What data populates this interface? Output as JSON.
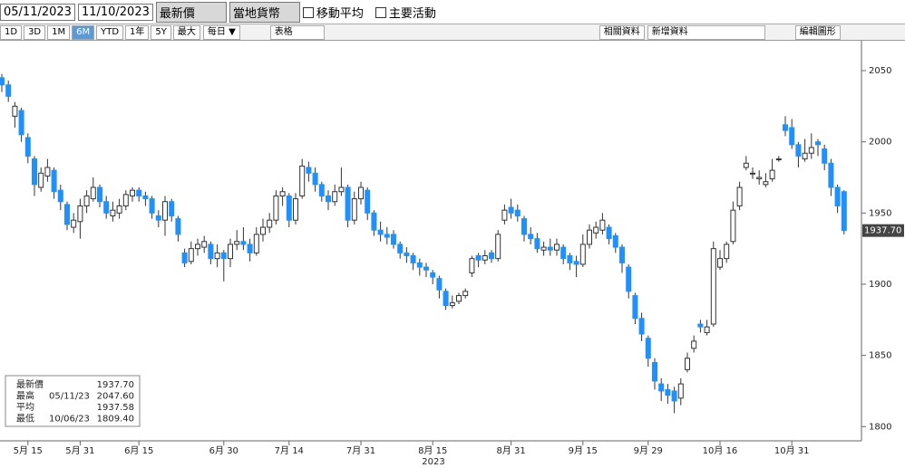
{
  "toolbar": {
    "start_date": "05/11/2023",
    "end_date": "11/10/2023",
    "price_field": "最新價",
    "currency": "當地貨幣",
    "moving_average": "移動平均",
    "key_events": "主要活動",
    "ranges": [
      "1D",
      "3D",
      "1M",
      "6M",
      "YTD",
      "1年",
      "5Y",
      "最大"
    ],
    "frequency": "每日 ▼",
    "table": "表格",
    "related": "相關資料",
    "add_data": "新增資料",
    "edit_chart": "編輯圖形"
  },
  "chart_data": {
    "type": "candlestick",
    "x_label": "2023",
    "up_color": "#ffffff",
    "down_color": "#1e90ff",
    "ylim": [
      1790,
      2071
    ],
    "yticks": [
      1800,
      1850,
      1900,
      1950,
      2000,
      2050
    ],
    "legend": [
      {
        "name": "最新價",
        "value": "1937.70"
      },
      {
        "name": "最高",
        "date": "05/11/23",
        "value": "2047.60"
      },
      {
        "name": "平均",
        "value": "1937.58"
      },
      {
        "name": "最低",
        "date": "10/06/23",
        "value": "1809.40"
      }
    ],
    "categories": [
      null,
      null,
      null,
      null,
      "5月 15",
      null,
      null,
      null,
      null,
      null,
      null,
      null,
      "5月 31",
      null,
      null,
      null,
      null,
      null,
      null,
      null,
      null,
      "6月 15",
      null,
      null,
      null,
      null,
      null,
      null,
      null,
      null,
      null,
      null,
      null,
      null,
      "6月 30",
      null,
      null,
      null,
      null,
      null,
      null,
      null,
      null,
      null,
      "7月 14",
      null,
      null,
      null,
      null,
      null,
      null,
      null,
      null,
      null,
      null,
      "7月 31",
      null,
      null,
      null,
      null,
      null,
      null,
      null,
      null,
      null,
      null,
      "8月 15",
      null,
      null,
      null,
      null,
      null,
      null,
      null,
      null,
      null,
      null,
      null,
      "8月 31",
      null,
      null,
      null,
      null,
      null,
      null,
      null,
      null,
      null,
      null,
      "9月 15",
      null,
      null,
      null,
      null,
      null,
      null,
      null,
      null,
      null,
      "9月 29",
      null,
      null,
      null,
      null,
      null,
      null,
      null,
      null,
      null,
      null,
      "10月 16",
      null,
      null,
      null,
      null,
      null,
      null,
      null,
      null,
      null,
      null,
      "10月 31",
      null,
      null,
      null,
      null,
      null,
      null,
      null,
      null
    ],
    "candles": [
      [
        2045,
        2047.6,
        2035,
        2040
      ],
      [
        2040,
        2043,
        2028,
        2032
      ],
      [
        2018,
        2028,
        2010,
        2025
      ],
      [
        2022,
        2024,
        2000,
        2005
      ],
      [
        2003,
        2006,
        1985,
        1990
      ],
      [
        1988,
        1990,
        1962,
        1970
      ],
      [
        1968,
        1982,
        1965,
        1978
      ],
      [
        1976,
        1988,
        1972,
        1982
      ],
      [
        1980,
        1982,
        1960,
        1965
      ],
      [
        1966,
        1970,
        1952,
        1958
      ],
      [
        1956,
        1958,
        1938,
        1942
      ],
      [
        1940,
        1950,
        1936,
        1945
      ],
      [
        1944,
        1960,
        1932,
        1955
      ],
      [
        1955,
        1966,
        1950,
        1962
      ],
      [
        1960,
        1975,
        1958,
        1968
      ],
      [
        1968,
        1970,
        1954,
        1958
      ],
      [
        1958,
        1962,
        1946,
        1950
      ],
      [
        1948,
        1958,
        1944,
        1952
      ],
      [
        1950,
        1960,
        1946,
        1955
      ],
      [
        1955,
        1966,
        1952,
        1963
      ],
      [
        1962,
        1968,
        1958,
        1966
      ],
      [
        1966,
        1968,
        1958,
        1962
      ],
      [
        1962,
        1965,
        1955,
        1960
      ],
      [
        1960,
        1962,
        1946,
        1950
      ],
      [
        1948,
        1952,
        1940,
        1945
      ],
      [
        1945,
        1962,
        1934,
        1958
      ],
      [
        1958,
        1960,
        1944,
        1948
      ],
      [
        1946,
        1948,
        1930,
        1935
      ],
      [
        1922,
        1925,
        1912,
        1915
      ],
      [
        1916,
        1930,
        1914,
        1925
      ],
      [
        1925,
        1932,
        1920,
        1928
      ],
      [
        1926,
        1934,
        1922,
        1930
      ],
      [
        1928,
        1930,
        1914,
        1918
      ],
      [
        1918,
        1928,
        1912,
        1922
      ],
      [
        1922,
        1924,
        1902,
        1918
      ],
      [
        1918,
        1932,
        1912,
        1928
      ],
      [
        1928,
        1938,
        1924,
        1930
      ],
      [
        1930,
        1940,
        1924,
        1928
      ],
      [
        1928,
        1932,
        1916,
        1922
      ],
      [
        1922,
        1940,
        1920,
        1935
      ],
      [
        1935,
        1946,
        1930,
        1940
      ],
      [
        1940,
        1950,
        1936,
        1945
      ],
      [
        1945,
        1966,
        1942,
        1962
      ],
      [
        1962,
        1968,
        1955,
        1965
      ],
      [
        1962,
        1964,
        1940,
        1945
      ],
      [
        1945,
        1964,
        1942,
        1960
      ],
      [
        1962,
        1988,
        1960,
        1983
      ],
      [
        1982,
        1986,
        1972,
        1978
      ],
      [
        1978,
        1982,
        1965,
        1970
      ],
      [
        1970,
        1972,
        1958,
        1962
      ],
      [
        1962,
        1966,
        1952,
        1958
      ],
      [
        1958,
        1970,
        1955,
        1965
      ],
      [
        1965,
        1982,
        1962,
        1968
      ],
      [
        1968,
        1970,
        1940,
        1945
      ],
      [
        1945,
        1965,
        1942,
        1960
      ],
      [
        1960,
        1972,
        1956,
        1968
      ],
      [
        1966,
        1968,
        1945,
        1950
      ],
      [
        1950,
        1952,
        1934,
        1938
      ],
      [
        1938,
        1944,
        1930,
        1935
      ],
      [
        1935,
        1940,
        1928,
        1933
      ],
      [
        1935,
        1938,
        1925,
        1928
      ],
      [
        1928,
        1930,
        1918,
        1922
      ],
      [
        1922,
        1926,
        1915,
        1920
      ],
      [
        1920,
        1922,
        1910,
        1915
      ],
      [
        1915,
        1918,
        1906,
        1912
      ],
      [
        1912,
        1915,
        1905,
        1910
      ],
      [
        1908,
        1910,
        1900,
        1905
      ],
      [
        1904,
        1906,
        1890,
        1896
      ],
      [
        1895,
        1897,
        1882,
        1885
      ],
      [
        1885,
        1892,
        1883,
        1887
      ],
      [
        1888,
        1894,
        1886,
        1892
      ],
      [
        1892,
        1897,
        1890,
        1895
      ],
      [
        1908,
        1920,
        1905,
        1918
      ],
      [
        1920,
        1922,
        1912,
        1917
      ],
      [
        1917,
        1924,
        1914,
        1920
      ],
      [
        1922,
        1924,
        1915,
        1918
      ],
      [
        1918,
        1938,
        1916,
        1935
      ],
      [
        1945,
        1956,
        1942,
        1952
      ],
      [
        1954,
        1960,
        1946,
        1950
      ],
      [
        1952,
        1956,
        1944,
        1948
      ],
      [
        1946,
        1948,
        1930,
        1935
      ],
      [
        1935,
        1940,
        1928,
        1932
      ],
      [
        1932,
        1936,
        1922,
        1925
      ],
      [
        1924,
        1930,
        1920,
        1926
      ],
      [
        1926,
        1932,
        1920,
        1924
      ],
      [
        1924,
        1932,
        1920,
        1928
      ],
      [
        1926,
        1928,
        1914,
        1918
      ],
      [
        1920,
        1922,
        1910,
        1915
      ],
      [
        1916,
        1920,
        1905,
        1914
      ],
      [
        1914,
        1935,
        1912,
        1928
      ],
      [
        1928,
        1942,
        1925,
        1938
      ],
      [
        1936,
        1944,
        1932,
        1940
      ],
      [
        1938,
        1950,
        1935,
        1945
      ],
      [
        1940,
        1942,
        1928,
        1932
      ],
      [
        1934,
        1936,
        1922,
        1926
      ],
      [
        1926,
        1928,
        1908,
        1915
      ],
      [
        1912,
        1914,
        1890,
        1895
      ],
      [
        1892,
        1894,
        1872,
        1876
      ],
      [
        1876,
        1880,
        1860,
        1865
      ],
      [
        1862,
        1864,
        1842,
        1848
      ],
      [
        1845,
        1848,
        1826,
        1832
      ],
      [
        1830,
        1834,
        1818,
        1825
      ],
      [
        1826,
        1830,
        1816,
        1822
      ],
      [
        1825,
        1828,
        1809.4,
        1818
      ],
      [
        1820,
        1834,
        1815,
        1830
      ],
      [
        1840,
        1852,
        1838,
        1848
      ],
      [
        1855,
        1864,
        1852,
        1860
      ],
      [
        1872,
        1875,
        1866,
        1870
      ],
      [
        1866,
        1875,
        1864,
        1870
      ],
      [
        1872,
        1930,
        1870,
        1925
      ],
      [
        1912,
        1924,
        1910,
        1918
      ],
      [
        1918,
        1930,
        1915,
        1928
      ],
      [
        1930,
        1958,
        1928,
        1952
      ],
      [
        1955,
        1972,
        1952,
        1968
      ],
      [
        1982,
        1990,
        1980,
        1985
      ],
      [
        1978,
        1982,
        1974,
        1978
      ],
      [
        1974,
        1980,
        1970,
        1975
      ],
      [
        1970,
        1978,
        1968,
        1972
      ],
      [
        1974,
        1988,
        1972,
        1980
      ],
      [
        1988,
        1990,
        1986,
        1988
      ],
      [
        2012,
        2018,
        2004,
        2008
      ],
      [
        2010,
        2016,
        1995,
        1998
      ],
      [
        1998,
        2000,
        1982,
        1990
      ],
      [
        1988,
        2002,
        1986,
        1992
      ],
      [
        1992,
        2006,
        1988,
        1996
      ],
      [
        2000,
        2002,
        1990,
        1998
      ],
      [
        1995,
        1998,
        1980,
        1985
      ],
      [
        1985,
        1988,
        1962,
        1968
      ],
      [
        1968,
        1970,
        1950,
        1955
      ],
      [
        1965,
        1966,
        1935,
        1937.7
      ]
    ]
  }
}
